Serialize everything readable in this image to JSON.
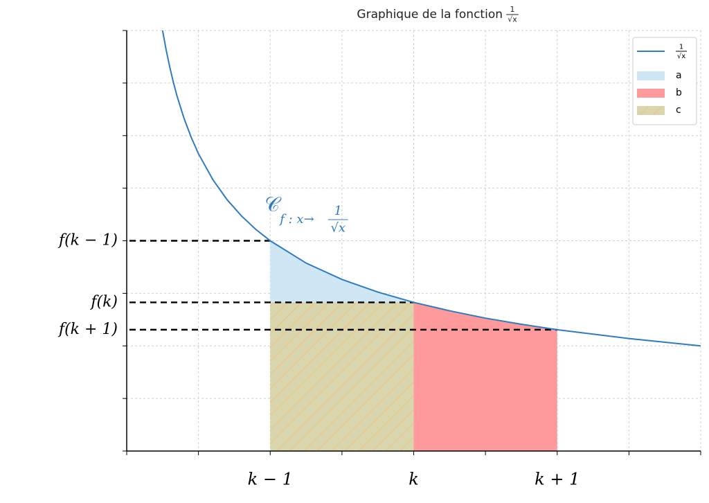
{
  "chart_data": {
    "type": "line",
    "title": "Graphique de la fonction",
    "title_fraction": {
      "numerator": "1",
      "denominator": "√x"
    },
    "xlim": [
      0,
      4
    ],
    "ylim": [
      0,
      2
    ],
    "xticks": [
      {
        "value": 0,
        "label": null
      },
      {
        "value": 0.5,
        "label": null
      },
      {
        "value": 1,
        "label": "k − 1"
      },
      {
        "value": 1.5,
        "label": null
      },
      {
        "value": 2,
        "label": "k"
      },
      {
        "value": 2.5,
        "label": null
      },
      {
        "value": 3,
        "label": "k + 1"
      },
      {
        "value": 3.5,
        "label": null
      },
      {
        "value": 4,
        "label": null
      }
    ],
    "yticks": [
      {
        "value": 0,
        "label": null
      },
      {
        "value": 0.25,
        "label": null
      },
      {
        "value": 0.5,
        "label": null
      },
      {
        "value": 0.75,
        "label": null
      },
      {
        "value": 1,
        "label": null
      },
      {
        "value": 1.25,
        "label": null
      },
      {
        "value": 1.5,
        "label": null
      },
      {
        "value": 1.75,
        "label": null
      },
      {
        "value": 2,
        "label": null
      }
    ],
    "grid": true,
    "legend": "upper right",
    "series": [
      {
        "name": {
          "numerator": "1",
          "denominator": "√x"
        },
        "color": "#2f7bbf",
        "x": [
          0.25,
          0.275,
          0.3,
          0.325,
          0.35,
          0.4,
          0.45,
          0.5,
          0.6,
          0.7,
          0.8,
          0.9,
          1,
          1.25,
          1.5,
          1.75,
          2,
          2.25,
          2.5,
          2.75,
          3,
          3.5,
          4
        ],
        "values": [
          2.0,
          1.907,
          1.826,
          1.754,
          1.69,
          1.581,
          1.491,
          1.414,
          1.291,
          1.195,
          1.118,
          1.054,
          1.0,
          0.894,
          0.816,
          0.756,
          0.707,
          0.667,
          0.632,
          0.603,
          0.577,
          0.535,
          0.5
        ]
      }
    ],
    "regions": [
      {
        "name": "a",
        "color": "#cfe7f4",
        "xlim": [
          1,
          2
        ],
        "upper": "curve",
        "lower": 0.707,
        "hatch": false
      },
      {
        "name": "b",
        "color": "#fe9a9b",
        "xlim": [
          2,
          3
        ],
        "upper": "curve",
        "lower": 0,
        "hatch": false
      },
      {
        "name": "c",
        "color": "#d9d5ad",
        "xlim": [
          1,
          2
        ],
        "upper": 0.707,
        "lower": 0,
        "hatch": true,
        "hatch_color": "#f1c27d"
      }
    ],
    "levels": [
      {
        "x": 1,
        "y": 1.0,
        "label": "f(k − 1)"
      },
      {
        "x": 2,
        "y": 0.707,
        "label": "f(k)"
      },
      {
        "x": 3,
        "y": 0.577,
        "label": "f(k + 1)"
      }
    ],
    "annotation": {
      "symbol": "𝒞",
      "subscript": "f : x→",
      "numerator": "1",
      "denominator": "√x",
      "x": 1,
      "y": 1.16
    }
  }
}
